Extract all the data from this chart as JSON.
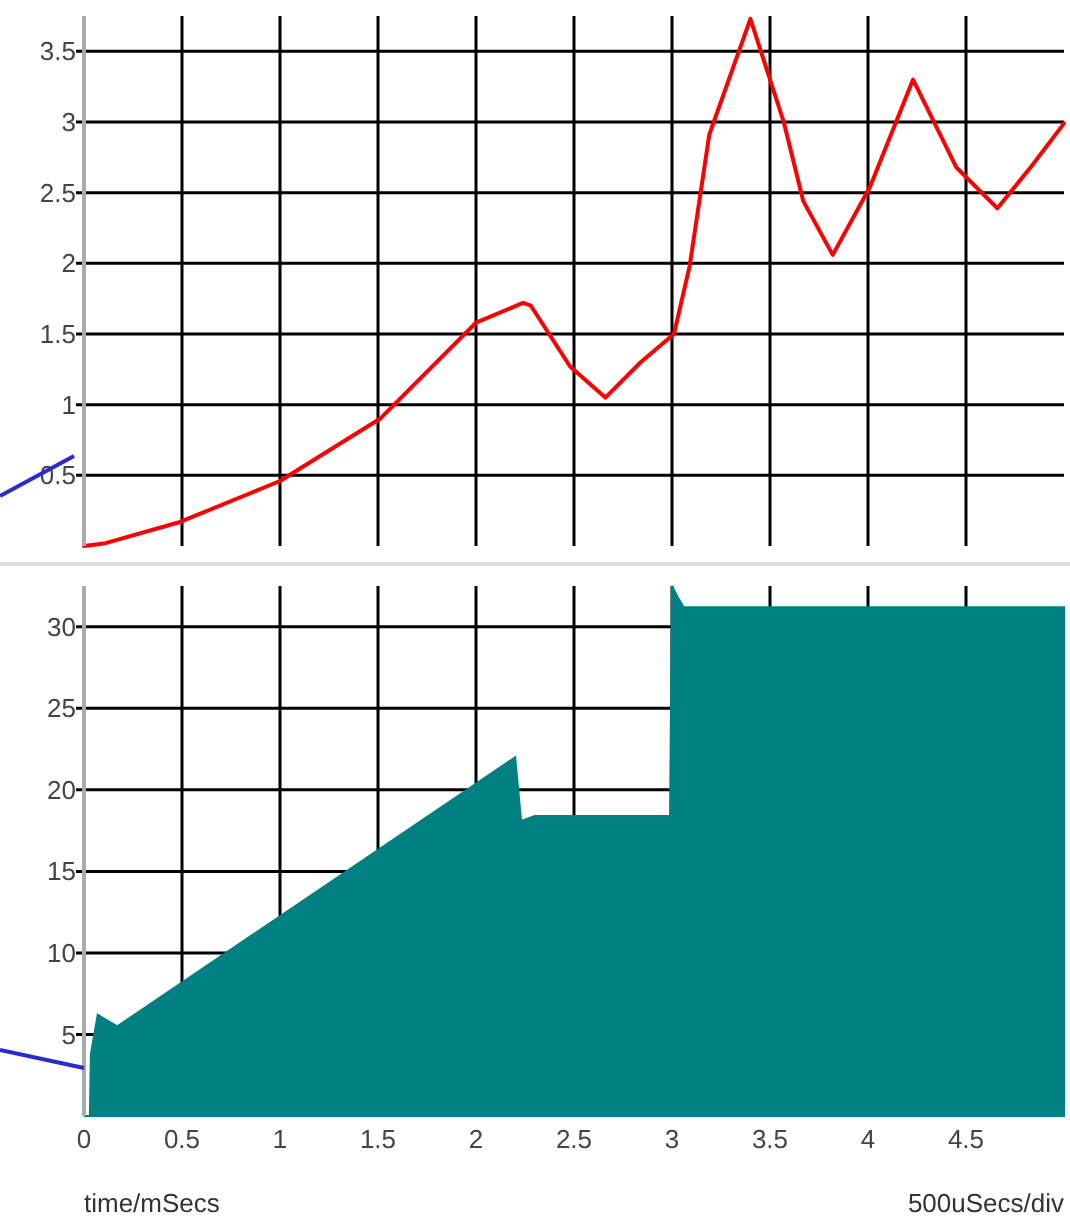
{
  "chart_data": [
    {
      "type": "line",
      "xlim": [
        0,
        5
      ],
      "ylim": [
        0,
        3.75
      ],
      "xticks": [
        0,
        0.5,
        1,
        1.5,
        2,
        2.5,
        3,
        3.5,
        4,
        4.5
      ],
      "yticks": [
        0.5,
        1,
        1.5,
        2,
        2.5,
        3,
        3.5
      ],
      "tick_labels": "y",
      "grid": true,
      "series": [
        {
          "color": "#ff0000",
          "x": [
            0,
            0.11,
            0.49,
            1.0,
            1.51,
            2.0,
            2.24,
            2.28,
            2.48,
            2.66,
            2.84,
            3.01,
            3.09,
            3.19,
            3.4,
            3.57,
            3.67,
            3.82,
            4.01,
            4.23,
            4.45,
            4.66,
            4.83,
            5.0
          ],
          "values": [
            0,
            0.02,
            0.17,
            0.46,
            0.9,
            1.58,
            1.72,
            1.7,
            1.27,
            1.05,
            1.3,
            1.5,
            1.98,
            2.91,
            3.73,
            3.0,
            2.44,
            2.06,
            2.54,
            3.3,
            2.68,
            2.39,
            2.68,
            2.99
          ]
        }
      ]
    },
    {
      "type": "area",
      "xlim": [
        0,
        5
      ],
      "ylim": [
        0,
        32.5
      ],
      "xticks": [
        0,
        0.5,
        1,
        1.5,
        2,
        2.5,
        3,
        3.5,
        4,
        4.5
      ],
      "yticks": [
        5,
        10,
        15,
        20,
        25,
        30
      ],
      "grid": true,
      "annotations": [
        "time/mSecs",
        "500uSecs/div"
      ],
      "series": [
        {
          "color": "#008080",
          "x": [
            0,
            0.03,
            0.035,
            0.07,
            0.17,
            2.2,
            2.23,
            2.3,
            2.99,
            3.0,
            3.03,
            3.06,
            5.0
          ],
          "values": [
            0,
            0,
            3.8,
            6.2,
            5.5,
            22.0,
            18.1,
            18.4,
            18.4,
            32.5,
            31.8,
            31.2,
            31.2
          ]
        }
      ]
    }
  ]
}
